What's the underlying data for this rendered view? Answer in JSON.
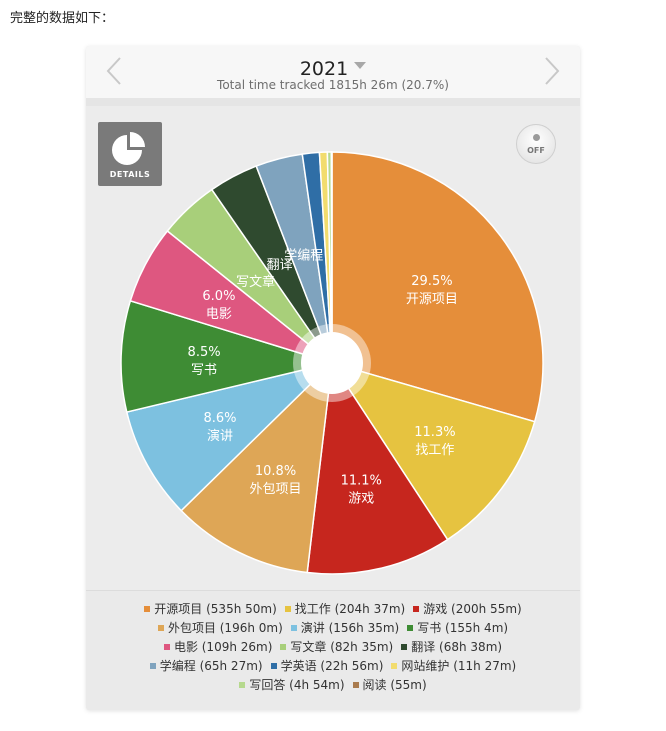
{
  "intro_text": "完整的数据如下：",
  "header": {
    "year": "2021",
    "subtitle": "Total time tracked 1815h 26m (20.7%)",
    "prev_icon": "chevron-left-icon",
    "next_icon": "chevron-right-icon",
    "dropdown_icon": "caret-down-icon"
  },
  "controls": {
    "details_label": "DETAILS",
    "details_icon": "pie-chart-icon",
    "toggle_label": "OFF"
  },
  "chart_data": {
    "type": "pie",
    "center": "donut-hole",
    "slices": [
      {
        "label": "开源项目",
        "pct": 29.5,
        "duration": "535h 50m",
        "color": "#E58E3A",
        "show_pct": true,
        "show_name": true
      },
      {
        "label": "找工作",
        "pct": 11.3,
        "duration": "204h 37m",
        "color": "#E6C340",
        "show_pct": true,
        "show_name": true
      },
      {
        "label": "游戏",
        "pct": 11.1,
        "duration": "200h 55m",
        "color": "#C6261E",
        "show_pct": true,
        "show_name": true
      },
      {
        "label": "外包项目",
        "pct": 10.8,
        "duration": "196h 0m",
        "color": "#DEA656",
        "show_pct": true,
        "show_name": true
      },
      {
        "label": "演讲",
        "pct": 8.6,
        "duration": "156h 35m",
        "color": "#7DC1E0",
        "show_pct": true,
        "show_name": true
      },
      {
        "label": "写书",
        "pct": 8.5,
        "duration": "155h 4m",
        "color": "#3E8C34",
        "show_pct": true,
        "show_name": true
      },
      {
        "label": "电影",
        "pct": 6.0,
        "duration": "109h 26m",
        "color": "#DE5780",
        "show_pct": true,
        "show_name": true
      },
      {
        "label": "写文章",
        "pct": 4.6,
        "duration": "82h 35m",
        "color": "#A8CF7A",
        "show_pct": false,
        "show_name": true
      },
      {
        "label": "翻译",
        "pct": 3.8,
        "duration": "68h 38m",
        "color": "#2F4A2F",
        "show_pct": false,
        "show_name": true
      },
      {
        "label": "学编程",
        "pct": 3.6,
        "duration": "65h 27m",
        "color": "#7FA3BE",
        "show_pct": false,
        "show_name": true
      },
      {
        "label": "学英语",
        "pct": 1.3,
        "duration": "22h 56m",
        "color": "#2F6EA6",
        "show_pct": false,
        "show_name": false
      },
      {
        "label": "网站维护",
        "pct": 0.6,
        "duration": "11h 27m",
        "color": "#F2DC6E",
        "show_pct": false,
        "show_name": false
      },
      {
        "label": "写回答",
        "pct": 0.3,
        "duration": "4h 54m",
        "color": "#B6D98E",
        "show_pct": false,
        "show_name": false
      },
      {
        "label": "阅读",
        "pct": 0.05,
        "duration": "55m",
        "color": "#A97B4E",
        "show_pct": false,
        "show_name": false
      }
    ]
  },
  "legend_rows": [
    [
      0,
      1,
      2
    ],
    [
      3,
      4,
      5
    ],
    [
      6,
      7,
      8
    ],
    [
      9,
      10,
      11
    ],
    [
      12,
      13
    ]
  ]
}
